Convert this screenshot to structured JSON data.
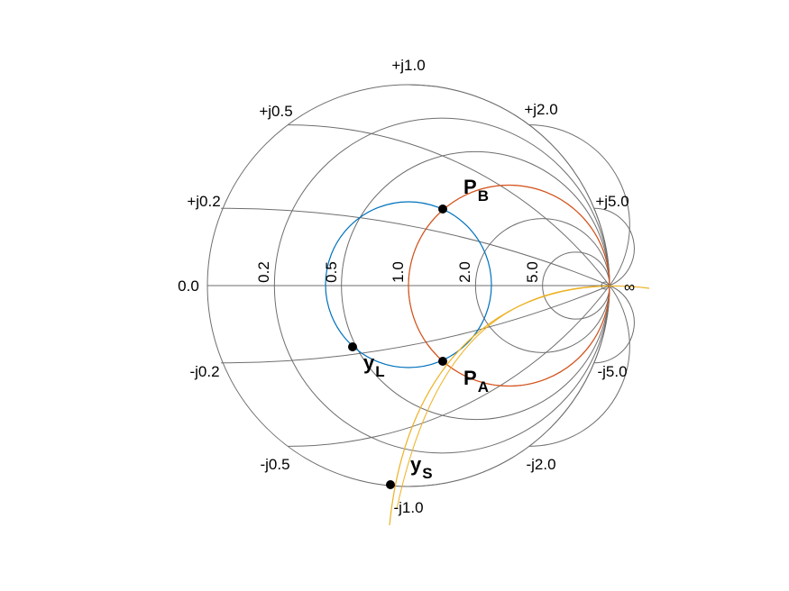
{
  "reactance_labels": {
    "pos_02": "+j0.2",
    "pos_05": "+j0.5",
    "pos_10": "+j1.0",
    "pos_20": "+j2.0",
    "pos_50": "+j5.0",
    "neg_02": "-j0.2",
    "neg_05": "-j0.5",
    "neg_10": "-j1.0",
    "neg_20": "-j2.0",
    "neg_50": "-j5.0",
    "zero": "0.0",
    "infinity": "∞"
  },
  "resistance_labels": {
    "r_02": "0.2",
    "r_05": "0.5",
    "r_10": "1.0",
    "r_20": "2.0",
    "r_50": "5.0"
  },
  "points": {
    "pb": {
      "main": "P",
      "sub": "B"
    },
    "pa": {
      "main": "P",
      "sub": "A"
    },
    "yl": {
      "main": "y",
      "sub": "L"
    },
    "ys": {
      "main": "y",
      "sub": "S"
    }
  },
  "colors": {
    "grid": "#6e6e6e",
    "circle_blue": "#0072BD",
    "circle_red": "#D95319",
    "arc_yellow": "#EDB120",
    "marker": "#000000"
  }
}
